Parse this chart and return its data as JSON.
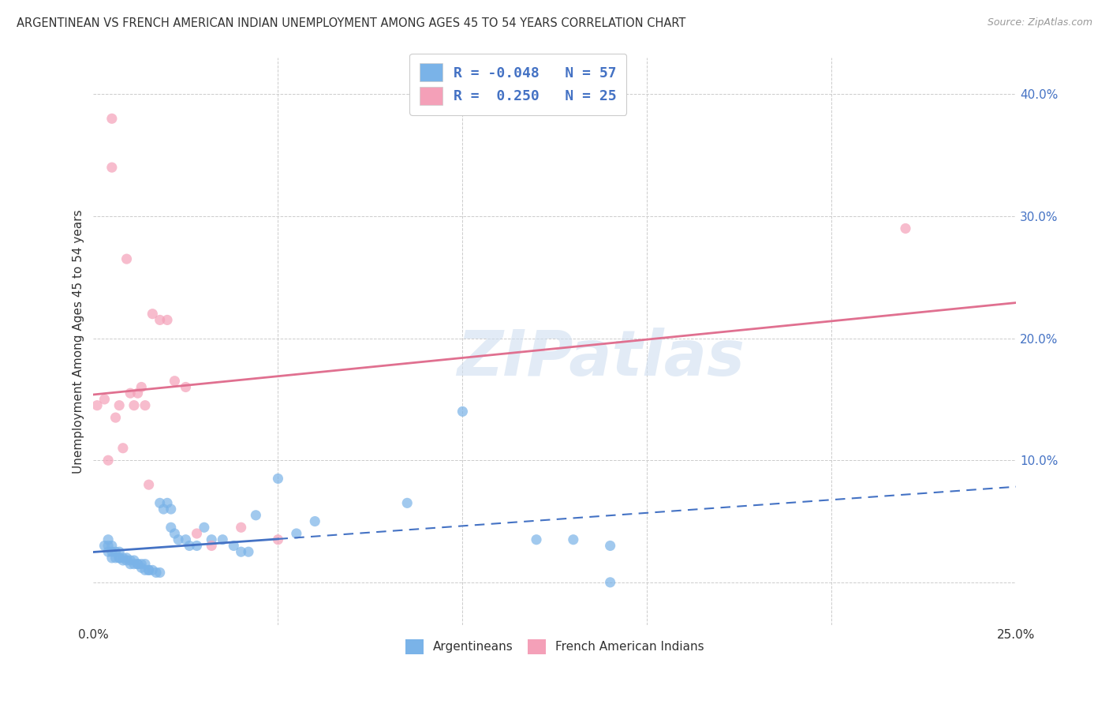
{
  "title": "ARGENTINEAN VS FRENCH AMERICAN INDIAN UNEMPLOYMENT AMONG AGES 45 TO 54 YEARS CORRELATION CHART",
  "source": "Source: ZipAtlas.com",
  "ylabel": "Unemployment Among Ages 45 to 54 years",
  "xmin": 0.0,
  "xmax": 0.25,
  "ymin": -0.035,
  "ymax": 0.43,
  "argentinean_color": "#7ab3e8",
  "french_color": "#f4a0b8",
  "argentinean_line_color": "#4472c4",
  "french_line_color": "#e07090",
  "watermark_text": "ZIPatlas",
  "watermark_color": "#c8d8f0",
  "blue_R": -0.048,
  "blue_N": 57,
  "pink_R": 0.25,
  "pink_N": 25,
  "argentinean_x": [
    0.003,
    0.004,
    0.004,
    0.004,
    0.005,
    0.005,
    0.005,
    0.006,
    0.006,
    0.007,
    0.007,
    0.007,
    0.008,
    0.008,
    0.009,
    0.009,
    0.01,
    0.01,
    0.011,
    0.011,
    0.012,
    0.012,
    0.013,
    0.013,
    0.014,
    0.014,
    0.015,
    0.015,
    0.016,
    0.017,
    0.018,
    0.018,
    0.019,
    0.02,
    0.021,
    0.021,
    0.022,
    0.023,
    0.025,
    0.026,
    0.028,
    0.03,
    0.032,
    0.035,
    0.038,
    0.04,
    0.042,
    0.044,
    0.05,
    0.055,
    0.06,
    0.085,
    0.1,
    0.12,
    0.13,
    0.14,
    0.14
  ],
  "argentinean_y": [
    0.03,
    0.035,
    0.03,
    0.025,
    0.03,
    0.025,
    0.02,
    0.025,
    0.02,
    0.02,
    0.025,
    0.02,
    0.02,
    0.018,
    0.02,
    0.018,
    0.018,
    0.015,
    0.018,
    0.015,
    0.015,
    0.015,
    0.015,
    0.012,
    0.015,
    0.01,
    0.01,
    0.01,
    0.01,
    0.008,
    0.008,
    0.065,
    0.06,
    0.065,
    0.06,
    0.045,
    0.04,
    0.035,
    0.035,
    0.03,
    0.03,
    0.045,
    0.035,
    0.035,
    0.03,
    0.025,
    0.025,
    0.055,
    0.085,
    0.04,
    0.05,
    0.065,
    0.14,
    0.035,
    0.035,
    0.0,
    0.03
  ],
  "french_x": [
    0.001,
    0.003,
    0.004,
    0.005,
    0.005,
    0.006,
    0.007,
    0.008,
    0.009,
    0.01,
    0.011,
    0.012,
    0.013,
    0.014,
    0.015,
    0.016,
    0.018,
    0.02,
    0.022,
    0.025,
    0.028,
    0.032,
    0.04,
    0.05,
    0.22
  ],
  "french_y": [
    0.145,
    0.15,
    0.1,
    0.38,
    0.34,
    0.135,
    0.145,
    0.11,
    0.265,
    0.155,
    0.145,
    0.155,
    0.16,
    0.145,
    0.08,
    0.22,
    0.215,
    0.215,
    0.165,
    0.16,
    0.04,
    0.03,
    0.045,
    0.035,
    0.29
  ],
  "blue_line_solid_end": 0.05,
  "background_color": "#ffffff",
  "grid_color": "#cccccc"
}
